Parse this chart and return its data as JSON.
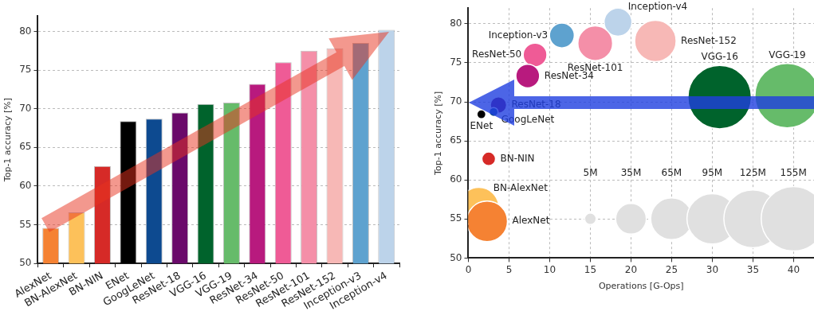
{
  "chart_data": [
    {
      "type": "bar",
      "ylabel": "Top-1 accuracy [%]",
      "categories": [
        "AlexNet",
        "BN-AlexNet",
        "BN-NIN",
        "ENet",
        "GoogLeNet",
        "ResNet-18",
        "VGG-16",
        "VGG-19",
        "ResNet-34",
        "ResNet-50",
        "ResNet-101",
        "ResNet-152",
        "Inception-v3",
        "Inception-v4"
      ],
      "values": [
        54.6,
        56.6,
        62.6,
        68.4,
        68.7,
        69.5,
        70.6,
        70.8,
        73.2,
        76.0,
        77.5,
        77.8,
        78.5,
        80.2
      ],
      "colors": [
        "#f58233",
        "#fdc15a",
        "#d62a27",
        "#000000",
        "#0d4a90",
        "#6a0a6a",
        "#00632c",
        "#66bb6a",
        "#b81a7e",
        "#ef5b96",
        "#f48fa8",
        "#f7b8b6",
        "#5ea2cf",
        "#bcd3ea"
      ],
      "ylim": [
        50,
        82
      ],
      "yticks": [
        50,
        55,
        60,
        65,
        70,
        75,
        80
      ],
      "grid": "y"
    },
    {
      "type": "bubble",
      "xlabel": "Operations [G-Ops]",
      "ylabel": "Top-1 accuracy [%]",
      "series": [
        {
          "name": "AlexNet",
          "color": "#f58233",
          "x": [
            2.3
          ],
          "values": [
            54.7
          ],
          "sizes": [
            62
          ]
        },
        {
          "name": "BN-AlexNet",
          "color": "#fdc15a",
          "x": [
            1.3
          ],
          "values": [
            56.5
          ],
          "sizes": [
            59
          ]
        },
        {
          "name": "BN-NIN",
          "color": "#d62a27",
          "x": [
            2.5
          ],
          "values": [
            62.7
          ],
          "sizes": [
            7
          ]
        },
        {
          "name": "ENet",
          "color": "#000000",
          "x": [
            1.6
          ],
          "values": [
            68.4
          ],
          "sizes": [
            3
          ]
        },
        {
          "name": "GoogLeNet",
          "color": "#0d4a90",
          "x": [
            3.1
          ],
          "values": [
            68.7
          ],
          "sizes": [
            3
          ]
        },
        {
          "name": "ResNet-18",
          "color": "#6a0a6a",
          "x": [
            3.7
          ],
          "values": [
            69.6
          ],
          "sizes": [
            10
          ]
        },
        {
          "name": "VGG-16",
          "color": "#00632c",
          "x": [
            30.9
          ],
          "values": [
            70.6
          ],
          "sizes": [
            150
          ]
        },
        {
          "name": "VGG-19",
          "color": "#66bb6a",
          "x": [
            39.2
          ],
          "values": [
            70.8
          ],
          "sizes": [
            155
          ]
        },
        {
          "name": "ResNet-34",
          "color": "#b81a7e",
          "x": [
            7.3
          ],
          "values": [
            73.3
          ],
          "sizes": [
            21
          ]
        },
        {
          "name": "ResNet-50",
          "color": "#ef5b96",
          "x": [
            8.2
          ],
          "values": [
            76.0
          ],
          "sizes": [
            21
          ]
        },
        {
          "name": "ResNet-101",
          "color": "#f48fa8",
          "x": [
            15.6
          ],
          "values": [
            77.5
          ],
          "sizes": [
            45
          ]
        },
        {
          "name": "ResNet-152",
          "color": "#f7b8b6",
          "x": [
            23.0
          ],
          "values": [
            77.8
          ],
          "sizes": [
            64
          ]
        },
        {
          "name": "Inception-v3",
          "color": "#5ea2cf",
          "x": [
            11.5
          ],
          "values": [
            78.5
          ],
          "sizes": [
            23
          ]
        },
        {
          "name": "Inception-v4",
          "color": "#bcd3ea",
          "x": [
            18.4
          ],
          "values": [
            80.2
          ],
          "sizes": [
            29
          ]
        }
      ],
      "size_legend": [
        {
          "value": 5,
          "label": "5M"
        },
        {
          "value": 35,
          "label": "35M"
        },
        {
          "value": 65,
          "label": "65M"
        },
        {
          "value": 95,
          "label": "95M"
        },
        {
          "value": 125,
          "label": "125M"
        },
        {
          "value": 155,
          "label": "155M"
        }
      ],
      "xlim": [
        0,
        42.5
      ],
      "xticks": [
        0,
        5,
        10,
        15,
        20,
        25,
        30,
        35,
        40
      ],
      "ylim": [
        50,
        82
      ],
      "yticks": [
        50,
        55,
        60,
        65,
        70,
        75,
        80
      ],
      "grid": true
    }
  ]
}
